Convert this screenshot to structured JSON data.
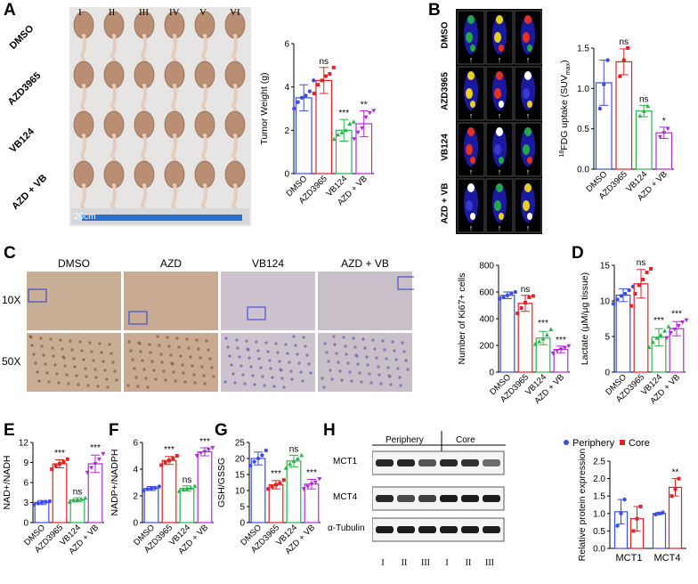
{
  "panels": {
    "a": "A",
    "b": "B",
    "c": "C",
    "d": "D",
    "e": "E",
    "f": "F",
    "g": "G",
    "h": "H"
  },
  "photo_a": {
    "columns": [
      "I",
      "II",
      "III",
      "IV",
      "V",
      "VI"
    ],
    "rows": [
      "DMSO",
      "AZD3965",
      "VB124",
      "AZD + VB"
    ],
    "scale_label": "20cm"
  },
  "pet_b": {
    "rows": [
      "DMSO",
      "AZD3965",
      "VB124",
      "AZD + VB"
    ]
  },
  "ihc_c": {
    "columns": [
      "DMSO",
      "AZD",
      "VB124",
      "AZD + VB"
    ],
    "rows": [
      "10X",
      "50X"
    ]
  },
  "blot_h": {
    "groups": [
      "Periphery",
      "Core"
    ],
    "proteins": [
      "MCT1",
      "MCT4",
      "α-Tubulin"
    ],
    "lanes": [
      "I",
      "II",
      "III",
      "I",
      "II",
      "III"
    ]
  },
  "colors": {
    "blue": "#3b4fe0",
    "red": "#e02424",
    "green": "#2bb34a",
    "purple": "#b02bd6"
  },
  "chart_data": [
    {
      "id": "tumor_weight",
      "type": "bar",
      "categories": [
        "DMSO",
        "AZD3965",
        "VB124",
        "AZD + VB"
      ],
      "values": [
        3.5,
        4.3,
        2.0,
        2.3
      ],
      "errors": [
        0.6,
        0.6,
        0.5,
        0.6
      ],
      "points": [
        [
          3.0,
          3.3,
          3.5,
          3.6,
          3.8,
          4.3
        ],
        [
          3.7,
          4.1,
          4.3,
          4.5,
          4.6,
          4.9
        ],
        [
          1.6,
          1.8,
          1.9,
          2.0,
          2.3,
          2.4
        ],
        [
          1.6,
          1.9,
          2.1,
          2.6,
          2.8,
          2.9
        ]
      ],
      "sig": [
        "",
        "ns",
        "***",
        "**"
      ],
      "ylabel": "Tumor Weight (g)",
      "ylim": [
        0,
        6
      ],
      "yticks": [
        "0",
        "2",
        "4",
        "6"
      ]
    },
    {
      "id": "fdg_uptake",
      "type": "bar",
      "categories": [
        "DMSO",
        "AZD3965",
        "VB124",
        "AZD + VB"
      ],
      "values": [
        1.07,
        1.33,
        0.72,
        0.45
      ],
      "errors": [
        0.28,
        0.16,
        0.07,
        0.07
      ],
      "points": [
        [
          0.75,
          1.05,
          1.35
        ],
        [
          1.15,
          1.35,
          1.5
        ],
        [
          0.66,
          0.72,
          0.78
        ],
        [
          0.4,
          0.45,
          0.5
        ]
      ],
      "sig": [
        "",
        "ns",
        "ns",
        "*"
      ],
      "ylabel": "18FDG uptake (SUVmax)",
      "ylabel_sup": "18",
      "ylabel_main": "FDG uptake (SUV",
      "ylabel_sub": "max",
      "ylabel_end": ")",
      "ylim": [
        0,
        1.5
      ],
      "yticks": [
        "0.0",
        "0.5",
        "1.0",
        "1.5"
      ]
    },
    {
      "id": "ki67",
      "type": "bar",
      "categories": [
        "DMSO",
        "AZD3965",
        "VB124",
        "AZD + VB"
      ],
      "values": [
        575,
        515,
        255,
        170
      ],
      "errors": [
        25,
        60,
        50,
        25
      ],
      "points": [
        [
          550,
          560,
          575,
          590,
          600
        ],
        [
          440,
          480,
          520,
          560,
          570
        ],
        [
          210,
          230,
          250,
          280,
          320
        ],
        [
          140,
          160,
          170,
          180,
          195
        ]
      ],
      "sig": [
        "",
        "ns",
        "***",
        "***"
      ],
      "ylabel": "Number of Ki67+ cells",
      "ylim": [
        0,
        800
      ],
      "yticks": [
        "0",
        "200",
        "400",
        "600",
        "800"
      ]
    },
    {
      "id": "lactate",
      "type": "bar",
      "categories": [
        "DMSO",
        "AZD3965",
        "VB124",
        "AZD + VB"
      ],
      "values": [
        10.8,
        12.4,
        4.9,
        6.1
      ],
      "errors": [
        0.9,
        2.0,
        1.2,
        1.0
      ],
      "points": [
        [
          9.6,
          10.2,
          10.7,
          11.0,
          11.5,
          12.0
        ],
        [
          9.3,
          11.0,
          12.2,
          13.0,
          14.0,
          14.5
        ],
        [
          3.5,
          4.2,
          4.8,
          5.2,
          5.8,
          6.4
        ],
        [
          4.8,
          5.5,
          6.0,
          6.5,
          7.0,
          7.3
        ]
      ],
      "sig": [
        "",
        "ns",
        "***",
        "***"
      ],
      "ylabel": "Lactate (μM/μg tissue)",
      "ylim": [
        0,
        15
      ],
      "yticks": [
        "0",
        "5",
        "10",
        "15"
      ]
    },
    {
      "id": "nad",
      "type": "bar",
      "categories": [
        "DMSO",
        "AZD3965",
        "VB124",
        "AZD + VB"
      ],
      "values": [
        3.0,
        8.8,
        3.4,
        8.8
      ],
      "errors": [
        0.3,
        0.6,
        0.3,
        1.3
      ],
      "points": [
        [
          2.7,
          2.9,
          3.0,
          3.1,
          3.2
        ],
        [
          8.0,
          8.5,
          8.8,
          9.1,
          9.5
        ],
        [
          3.1,
          3.3,
          3.4,
          3.5,
          3.7
        ],
        [
          7.5,
          8.2,
          8.8,
          9.5,
          10.3
        ]
      ],
      "sig": [
        "",
        "***",
        "ns",
        "***"
      ],
      "ylabel": "NAD+/NADH",
      "ylim": [
        0,
        12
      ],
      "yticks": [
        "0",
        "3",
        "6",
        "9",
        "12"
      ]
    },
    {
      "id": "nadp",
      "type": "bar",
      "categories": [
        "DMSO",
        "AZD3965",
        "VB124",
        "AZD + VB"
      ],
      "values": [
        2.55,
        4.65,
        2.55,
        5.3
      ],
      "errors": [
        0.15,
        0.3,
        0.2,
        0.3
      ],
      "points": [
        [
          2.4,
          2.5,
          2.55,
          2.6,
          2.7
        ],
        [
          4.3,
          4.5,
          4.65,
          4.8,
          5.0
        ],
        [
          2.35,
          2.5,
          2.55,
          2.6,
          2.75
        ],
        [
          5.0,
          5.2,
          5.3,
          5.45,
          5.6
        ]
      ],
      "sig": [
        "",
        "***",
        "ns",
        "***"
      ],
      "ylabel": "NADP+/NADPH",
      "ylim": [
        0,
        6
      ],
      "yticks": [
        "0",
        "2",
        "4",
        "6"
      ]
    },
    {
      "id": "gsh",
      "type": "bar",
      "categories": [
        "DMSO",
        "AZD3965",
        "VB124",
        "AZD + VB"
      ],
      "values": [
        20.0,
        11.8,
        19.2,
        12.0
      ],
      "errors": [
        2.0,
        1.3,
        1.8,
        1.5
      ],
      "points": [
        [
          17.8,
          19.0,
          20.0,
          21.0,
          22.5
        ],
        [
          10.5,
          11.2,
          11.8,
          12.3,
          13.3
        ],
        [
          17.0,
          18.3,
          19.2,
          20.0,
          21.0
        ],
        [
          10.5,
          11.2,
          12.0,
          12.6,
          13.6
        ]
      ],
      "sig": [
        "",
        "***",
        "ns",
        "***"
      ],
      "ylabel": "GSH/GSSG",
      "ylim": [
        0,
        25
      ],
      "yticks": [
        "0",
        "5",
        "10",
        "15",
        "20",
        "25"
      ]
    },
    {
      "id": "protein",
      "type": "bar",
      "categories": [
        "MCT1",
        "MCT4"
      ],
      "series": [
        {
          "name": "Periphery",
          "values": [
            1.05,
            1.0
          ],
          "errors": [
            0.35,
            0.03
          ],
          "points": [
            [
              0.65,
              1.0,
              1.4
            ],
            [
              0.97,
              1.0,
              1.03
            ]
          ]
        },
        {
          "name": "Core",
          "values": [
            0.85,
            1.75
          ],
          "errors": [
            0.35,
            0.25
          ],
          "points": [
            [
              0.5,
              0.85,
              1.2
            ],
            [
              1.5,
              1.7,
              2.0
            ]
          ]
        }
      ],
      "sig": [
        "",
        "",
        "",
        "**"
      ],
      "ylabel": "Relative protein expression",
      "ylim": [
        0,
        2.5
      ],
      "yticks": [
        "0.0",
        "0.5",
        "1.0",
        "1.5",
        "2.0",
        "2.5"
      ],
      "legend": "top"
    }
  ]
}
